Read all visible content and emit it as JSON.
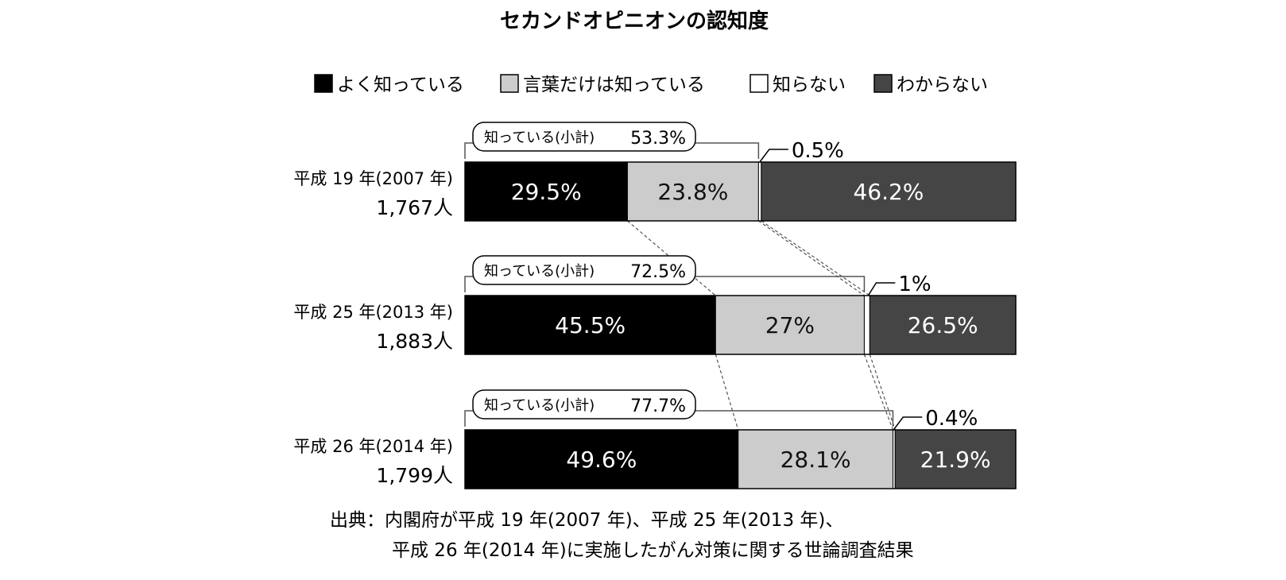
{
  "chart_data": {
    "type": "bar",
    "orientation": "horizontal",
    "stacked": true,
    "normalized": true,
    "title": "セカンドオピニオンの認知度",
    "legend": {
      "placement": "top",
      "entries": [
        {
          "name": "よく知っている",
          "color": "#000000"
        },
        {
          "name": "言葉だけは知っている",
          "color": "#cccccc"
        },
        {
          "name": "知らない",
          "color": "#ffffff"
        },
        {
          "name": "わからない",
          "color": "#454545"
        }
      ]
    },
    "categories": [
      {
        "label": "平成 19 年(2007 年)",
        "n": "1,767人"
      },
      {
        "label": "平成 25 年(2013 年)",
        "n": "1,883人"
      },
      {
        "label": "平成 26 年(2014 年)",
        "n": "1,799人"
      }
    ],
    "series": [
      {
        "name": "よく知っている",
        "values": [
          29.5,
          45.5,
          49.6
        ],
        "labels": [
          "29.5%",
          "45.5%",
          "49.6%"
        ]
      },
      {
        "name": "言葉だけは知っている",
        "values": [
          23.8,
          27,
          28.1
        ],
        "labels": [
          "23.8%",
          "27%",
          "28.1%"
        ]
      },
      {
        "name": "知らない",
        "values": [
          0.5,
          1,
          0.4
        ],
        "labels": [
          "0.5%",
          "1%",
          "0.4%"
        ]
      },
      {
        "name": "わからない",
        "values": [
          46.2,
          26.5,
          21.9
        ],
        "labels": [
          "46.2%",
          "26.5%",
          "21.9%"
        ]
      }
    ],
    "subtotal": {
      "label": "知っている(小計)",
      "values": [
        "53.3%",
        "72.5%",
        "77.7%"
      ]
    },
    "connector_lines": "dashed",
    "xlim": [
      0,
      100
    ],
    "grid": false
  },
  "source": {
    "line1": "出典：内閣府が平成 19 年(2007 年)、平成 25 年(2013 年)、",
    "line2": "平成 26 年(2014 年)に実施したがん対策に関する世論調査結果"
  }
}
